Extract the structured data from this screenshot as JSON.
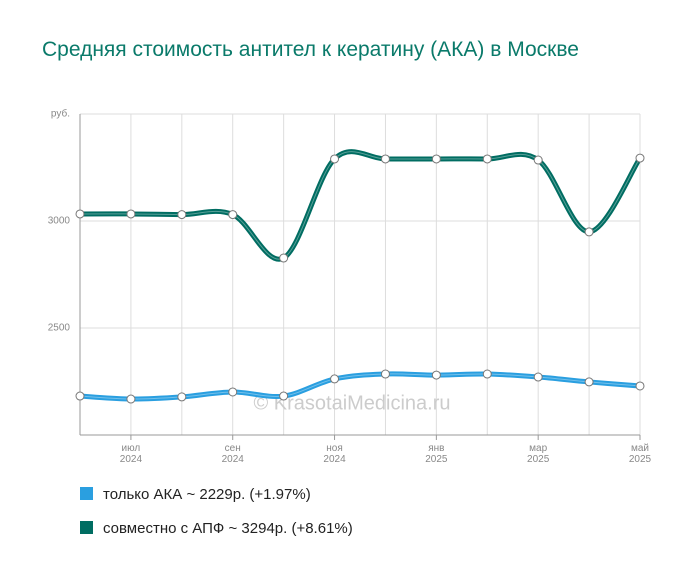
{
  "chart_data": {
    "type": "line",
    "title": "Средняя стоимость антител к кератину (АКА) в Москве",
    "watermark": "© KrasotaiMedicina.ru",
    "categories": [
      null,
      "июл 2024",
      null,
      "сен 2024",
      null,
      "ноя 2024",
      null,
      "янв 2025",
      null,
      "мар 2025",
      null,
      "май 2025"
    ],
    "series": [
      {
        "name": "только АКА ~ 2229р. (+1.97%)",
        "color": "#2a9fe0",
        "values": [
          2182,
          2168,
          2178,
          2201,
          2182,
          2262,
          2285,
          2280,
          2285,
          2271,
          2248,
          2229
        ]
      },
      {
        "name": "совместно с АПФ ~ 3294р. (+8.61%)",
        "color": "#006d62",
        "values": [
          3033,
          3033,
          3030,
          3030,
          2827,
          3290,
          3290,
          3290,
          3290,
          3285,
          2949,
          3294
        ]
      }
    ],
    "ylim": [
      2000,
      3500
    ],
    "yticks": [
      2500,
      3000,
      {
        "value": 3500,
        "label": "руб."
      }
    ],
    "grid": true
  }
}
